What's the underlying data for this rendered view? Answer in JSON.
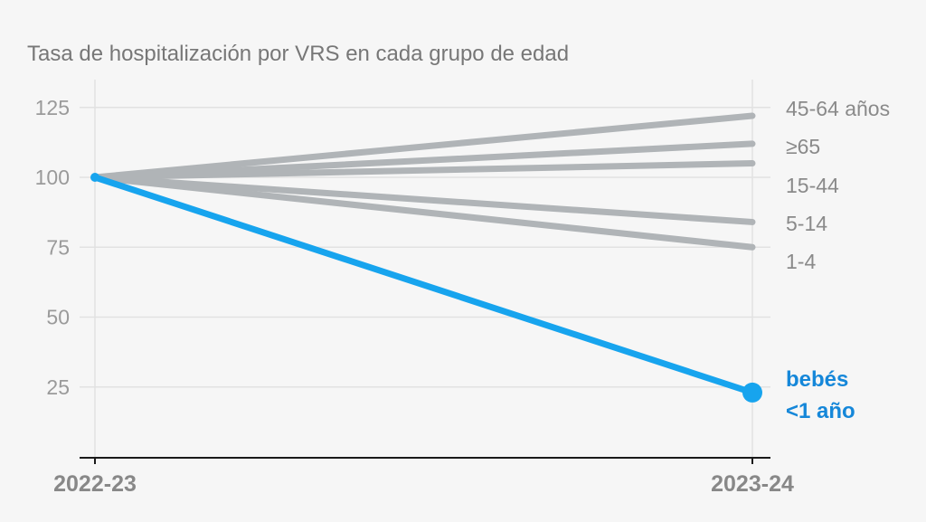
{
  "chart_data": {
    "type": "line",
    "title": "Tasa de hospitalización por VRS en cada grupo de edad",
    "x": [
      "2022-23",
      "2023-24"
    ],
    "yticks": [
      25,
      50,
      75,
      100,
      125
    ],
    "ylim": [
      0,
      136
    ],
    "grid": true,
    "series": [
      {
        "name": "45-64 años",
        "values": [
          100,
          122
        ],
        "color": "#b0b4b7"
      },
      {
        "name": "≥65",
        "values": [
          100,
          112
        ],
        "color": "#b0b4b7"
      },
      {
        "name": "15-44",
        "values": [
          100,
          105
        ],
        "color": "#b0b4b7"
      },
      {
        "name": "5-14",
        "values": [
          100,
          84
        ],
        "color": "#b0b4b7"
      },
      {
        "name": "1-4",
        "values": [
          100,
          75
        ],
        "color": "#b0b4b7"
      },
      {
        "name": "bebés <1 año",
        "label_lines": [
          "bebés",
          "<1 año"
        ],
        "values": [
          100,
          23
        ],
        "color": "#17a4ee",
        "label_color": "#1587d9",
        "highlight": true
      }
    ]
  }
}
